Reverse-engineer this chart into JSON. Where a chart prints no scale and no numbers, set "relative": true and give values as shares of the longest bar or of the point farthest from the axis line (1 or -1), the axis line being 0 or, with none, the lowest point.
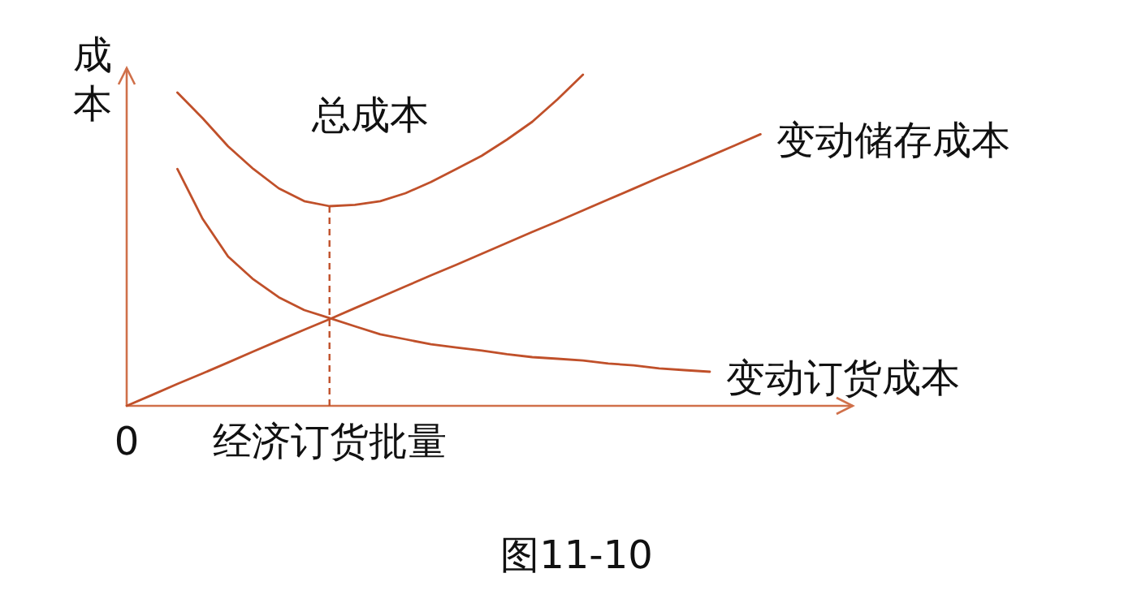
{
  "chart_data": {
    "type": "line",
    "relative": true,
    "ylabel": "成本",
    "categories": [
      "0",
      null,
      null,
      null,
      null,
      null,
      null,
      null,
      "经济订货批量",
      null,
      null,
      null,
      null,
      null,
      null,
      null,
      null,
      null,
      null,
      null,
      null,
      null,
      null,
      null,
      null,
      null,
      null,
      null,
      null
    ],
    "series": [
      {
        "name": "总成本",
        "color": "#c0502a",
        "values": [
          null,
          null,
          0.946,
          0.868,
          0.784,
          0.715,
          0.657,
          0.618,
          0.603,
          0.607,
          0.618,
          0.642,
          0.676,
          0.715,
          0.755,
          0.804,
          0.858,
          0.926,
          1.0,
          null,
          null,
          null,
          null,
          null,
          null,
          null,
          null,
          null,
          null
        ]
      },
      {
        "name": "变动储存成本",
        "color": "#c0502a",
        "values": [
          0,
          0.033,
          0.066,
          0.098,
          0.131,
          0.164,
          0.197,
          0.23,
          0.262,
          0.295,
          0.328,
          0.361,
          0.394,
          0.426,
          0.459,
          0.492,
          0.525,
          0.557,
          0.59,
          0.623,
          0.656,
          0.689,
          0.721,
          0.754,
          0.787,
          0.82,
          null,
          null,
          null
        ]
      },
      {
        "name": "变动订货成本",
        "color": "#c0502a",
        "values": [
          null,
          null,
          0.715,
          0.564,
          0.451,
          0.382,
          0.328,
          0.289,
          0.265,
          0.24,
          0.216,
          0.201,
          0.186,
          0.176,
          0.167,
          0.156,
          0.147,
          0.142,
          0.137,
          0.128,
          0.122,
          0.113,
          0.108,
          0.103,
          null,
          null,
          null,
          null,
          null
        ]
      }
    ],
    "ref_lines": [
      {
        "axis": "x",
        "value": "经济订货批量",
        "line_style": "dashed",
        "color": "#c0502a"
      }
    ],
    "annotations": [
      "图11-10"
    ]
  }
}
